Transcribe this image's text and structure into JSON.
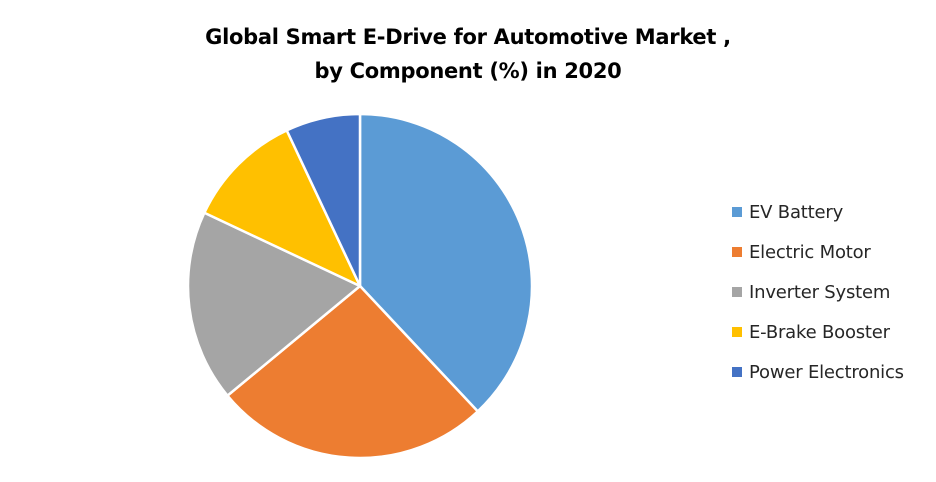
{
  "chart_data": {
    "type": "pie",
    "title": "Global Smart E-Drive for Automotive Market ,",
    "subtitle": "by Component (%) in 2020",
    "categories": [
      "EV Battery",
      "Electric Motor",
      "Inverter System",
      "E-Brake Booster",
      "Power Electronics"
    ],
    "values": [
      38,
      26,
      18,
      11,
      7
    ],
    "colors": [
      "#5B9BD5",
      "#ED7D31",
      "#A5A5A5",
      "#FFC000",
      "#4472C4"
    ],
    "legend_position": "right",
    "start_angle": "12 o'clock",
    "direction": "clockwise"
  }
}
